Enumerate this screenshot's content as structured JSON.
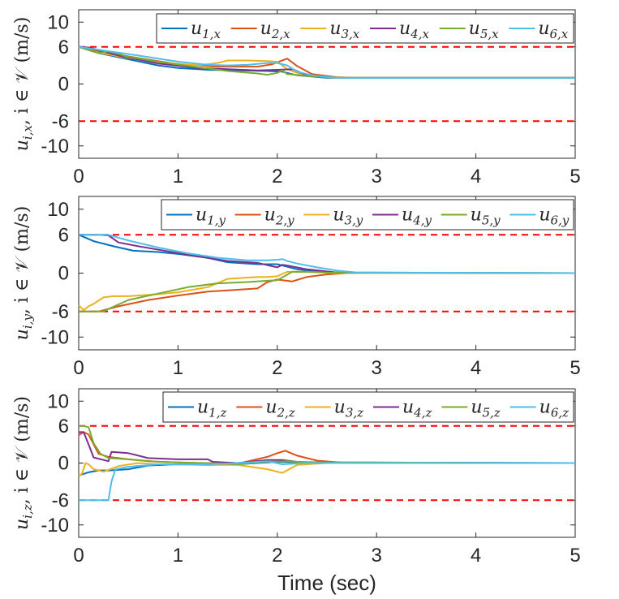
{
  "chart_data": [
    {
      "type": "line",
      "ylabel": "u_{i,x}, i ∈ 𝒱 (m/s)",
      "ylabel_parts": {
        "var": "u",
        "sub": "i,x",
        "rest": ", i ∈ 𝒱 (m/s)"
      },
      "xlim": [
        0,
        5
      ],
      "ylim": [
        -12,
        12
      ],
      "xticks": [
        "0",
        "1",
        "2",
        "3",
        "4",
        "5"
      ],
      "yticks": [
        {
          "v": 10,
          "label": "10"
        },
        {
          "v": 6,
          "label": "6"
        },
        {
          "v": 0,
          "label": "0"
        },
        {
          "v": -6,
          "label": "-6"
        },
        {
          "v": -10,
          "label": "-10"
        }
      ],
      "bounds": [
        6,
        -6
      ],
      "legend_position": "top-right",
      "series": [
        {
          "name": "u1x",
          "label": "u",
          "sub": "1,x",
          "color": "#0072BD",
          "x": [
            0,
            0.2,
            0.5,
            0.8,
            1.0,
            1.3,
            1.6,
            1.9,
            2.05,
            2.2,
            2.5,
            2.8,
            5
          ],
          "y": [
            6,
            5.0,
            4.0,
            3.0,
            2.6,
            2.3,
            2.2,
            2.1,
            2.0,
            1.4,
            1.0,
            1.0,
            1.0
          ]
        },
        {
          "name": "u2x",
          "label": "u",
          "sub": "2,x",
          "color": "#D95319",
          "x": [
            0,
            0.3,
            0.6,
            1.0,
            1.4,
            1.8,
            1.95,
            2.1,
            2.2,
            2.35,
            2.6,
            2.8,
            5
          ],
          "y": [
            6,
            5.0,
            4.2,
            3.2,
            2.8,
            2.8,
            3.2,
            4.1,
            2.9,
            1.6,
            1.1,
            1.0,
            1.0
          ]
        },
        {
          "name": "u3x",
          "label": "u",
          "sub": "3,x",
          "color": "#EDB120",
          "x": [
            0,
            0.15,
            0.5,
            0.9,
            1.2,
            1.4,
            1.5,
            1.7,
            1.9,
            2.0,
            2.1,
            2.25,
            2.5,
            2.8,
            5
          ],
          "y": [
            6,
            5.2,
            4.2,
            3.4,
            3.0,
            3.4,
            3.8,
            3.8,
            3.7,
            3.6,
            2.4,
            1.5,
            1.1,
            1.0,
            1.0
          ]
        },
        {
          "name": "u4x",
          "label": "u",
          "sub": "4,x",
          "color": "#7E2F8E",
          "x": [
            0,
            0.1,
            0.4,
            0.8,
            1.2,
            1.5,
            1.8,
            2.0,
            2.15,
            2.3,
            2.6,
            2.8,
            5
          ],
          "y": [
            6,
            5.9,
            4.6,
            3.3,
            2.6,
            2.4,
            2.2,
            2.3,
            2.4,
            1.4,
            1.0,
            1.0,
            1.0
          ]
        },
        {
          "name": "u5x",
          "label": "u",
          "sub": "5,x",
          "color": "#77AC30",
          "x": [
            0,
            0.1,
            0.2,
            0.3,
            0.5,
            0.8,
            1.2,
            1.5,
            1.8,
            1.9,
            2.0,
            2.05,
            2.1,
            2.3,
            2.6,
            2.8,
            5
          ],
          "y": [
            6,
            5.5,
            5.0,
            5.3,
            4.4,
            3.6,
            2.7,
            2.1,
            1.7,
            1.5,
            1.8,
            2.2,
            1.6,
            1.3,
            1.0,
            1.0,
            1.0
          ]
        },
        {
          "name": "u6x",
          "label": "u",
          "sub": "6,x",
          "color": "#4DBEEE",
          "x": [
            0,
            0.3,
            0.6,
            1.0,
            1.3,
            1.5,
            1.7,
            1.9,
            2.0,
            2.1,
            2.2,
            2.35,
            2.6,
            2.8,
            5
          ],
          "y": [
            6,
            5.3,
            4.6,
            3.6,
            3.1,
            3.0,
            3.1,
            3.4,
            3.4,
            3.0,
            2.0,
            1.4,
            1.0,
            1.0,
            1.0
          ]
        }
      ],
      "legend": [
        "u1x",
        "u2x",
        "u3x",
        "u4x",
        "u5x",
        "u6x"
      ]
    },
    {
      "type": "line",
      "ylabel": "u_{i,y}, i ∈ 𝒱 (m/s)",
      "ylabel_parts": {
        "var": "u",
        "sub": "i,y",
        "rest": ", i ∈ 𝒱 (m/s)"
      },
      "xlim": [
        0,
        5
      ],
      "ylim": [
        -12,
        12
      ],
      "xticks": [
        "0",
        "1",
        "2",
        "3",
        "4",
        "5"
      ],
      "yticks": [
        {
          "v": 10,
          "label": "10"
        },
        {
          "v": 6,
          "label": "6"
        },
        {
          "v": 0,
          "label": "0"
        },
        {
          "v": -6,
          "label": "-6"
        },
        {
          "v": -10,
          "label": "-10"
        }
      ],
      "bounds": [
        6,
        -6
      ],
      "legend_position": "top-right",
      "series": [
        {
          "name": "u1y",
          "label": "u",
          "sub": "1,y",
          "color": "#0072BD",
          "x": [
            0,
            0.15,
            0.35,
            0.55,
            0.8,
            1.0,
            1.3,
            1.5,
            1.8,
            2.0,
            2.2,
            2.4,
            2.6,
            2.8,
            5
          ],
          "y": [
            6,
            5.0,
            4.2,
            3.5,
            3.3,
            3.0,
            2.4,
            1.7,
            1.4,
            1.4,
            0.6,
            0.2,
            0.1,
            0,
            0
          ]
        },
        {
          "name": "u2y",
          "label": "u",
          "sub": "2,y",
          "color": "#D95319",
          "x": [
            0,
            0.2,
            0.4,
            0.7,
            1.0,
            1.3,
            1.6,
            1.8,
            1.9,
            2.0,
            2.15,
            2.3,
            2.5,
            2.7,
            5
          ],
          "y": [
            -6,
            -6,
            -5.2,
            -4.2,
            -3.5,
            -2.9,
            -2.6,
            -2.4,
            -1.4,
            -1.0,
            -1.3,
            -0.6,
            -0.2,
            0,
            0
          ]
        },
        {
          "name": "u3y",
          "label": "u",
          "sub": "3,y",
          "color": "#EDB120",
          "x": [
            0,
            0.05,
            0.1,
            0.15,
            0.25,
            0.35,
            0.5,
            0.8,
            1.0,
            1.3,
            1.5,
            1.8,
            1.9,
            2.0,
            2.1,
            2.3,
            2.6,
            5
          ],
          "y": [
            -5,
            -5.8,
            -5.2,
            -4.8,
            -3.8,
            -3.6,
            -3.6,
            -3.3,
            -3.0,
            -2.2,
            -0.9,
            -0.6,
            -0.6,
            -0.5,
            0.2,
            0.2,
            0,
            0
          ]
        },
        {
          "name": "u4y",
          "label": "u",
          "sub": "4,y",
          "color": "#7E2F8E",
          "x": [
            0,
            0.2,
            0.3,
            0.4,
            0.6,
            0.9,
            1.2,
            1.5,
            1.8,
            2.0,
            2.05,
            2.1,
            2.3,
            2.6,
            5
          ],
          "y": [
            6,
            6,
            5.9,
            4.8,
            4.2,
            3.4,
            2.6,
            1.9,
            1.6,
            0.9,
            1.3,
            1.2,
            0.6,
            0.1,
            0
          ]
        },
        {
          "name": "u5y",
          "label": "u",
          "sub": "5,y",
          "color": "#77AC30",
          "x": [
            0,
            0.25,
            0.3,
            0.5,
            0.8,
            1.1,
            1.4,
            1.7,
            1.9,
            2.0,
            2.15,
            2.3,
            2.5,
            5
          ],
          "y": [
            -6,
            -6,
            -5.6,
            -4.2,
            -3.2,
            -2.2,
            -1.6,
            -1.4,
            -1.2,
            -1.1,
            0.2,
            0.2,
            0.1,
            0
          ]
        },
        {
          "name": "u6y",
          "label": "u",
          "sub": "6,y",
          "color": "#4DBEEE",
          "x": [
            0,
            0.3,
            0.5,
            0.8,
            1.1,
            1.4,
            1.7,
            1.9,
            2.0,
            2.05,
            2.1,
            2.2,
            2.4,
            2.6,
            2.8,
            5
          ],
          "y": [
            6,
            6,
            5.1,
            4.0,
            3.1,
            2.4,
            2.0,
            2.0,
            2.1,
            2.2,
            1.9,
            1.5,
            0.9,
            0.4,
            0.1,
            0
          ]
        }
      ],
      "legend": [
        "u1y",
        "u2y",
        "u3y",
        "u4y",
        "u5y",
        "u6y"
      ]
    },
    {
      "type": "line",
      "ylabel": "u_{i,z}, i ∈ 𝒱 (m/s)",
      "ylabel_parts": {
        "var": "u",
        "sub": "i,z",
        "rest": ", i ∈ 𝒱 (m/s)"
      },
      "xlim": [
        0,
        5
      ],
      "ylim": [
        -12,
        12
      ],
      "xticks": [
        "0",
        "1",
        "2",
        "3",
        "4",
        "5"
      ],
      "xlabel": "Time (sec)",
      "yticks": [
        {
          "v": 10,
          "label": "10"
        },
        {
          "v": 6,
          "label": "6"
        },
        {
          "v": 0,
          "label": "0"
        },
        {
          "v": -6,
          "label": "-6"
        },
        {
          "v": -10,
          "label": "-10"
        }
      ],
      "bounds": [
        6,
        -6
      ],
      "legend_position": "top-right",
      "series": [
        {
          "name": "u1z",
          "label": "u",
          "sub": "1,z",
          "color": "#0072BD",
          "x": [
            0,
            0.1,
            0.2,
            0.3,
            0.5,
            0.7,
            1.0,
            1.3,
            1.6,
            2.0,
            2.3,
            5
          ],
          "y": [
            -2,
            -1.5,
            -1.2,
            -1.2,
            -1.0,
            -0.4,
            -0.2,
            -0.3,
            -0.2,
            0.2,
            0.1,
            0
          ]
        },
        {
          "name": "u2z",
          "label": "u",
          "sub": "2,z",
          "color": "#D95319",
          "x": [
            0,
            0.05,
            0.1,
            0.2,
            0.3,
            0.5,
            0.8,
            1.2,
            1.6,
            1.9,
            2.0,
            2.08,
            2.2,
            2.4,
            2.7,
            5
          ],
          "y": [
            4.5,
            5.0,
            4.6,
            1.5,
            1.0,
            0.6,
            0.2,
            0,
            -0.1,
            1.0,
            1.6,
            2.0,
            1.2,
            0.4,
            0,
            0
          ]
        },
        {
          "name": "u3z",
          "label": "u",
          "sub": "3,z",
          "color": "#EDB120",
          "x": [
            0,
            0.03,
            0.07,
            0.1,
            0.15,
            0.25,
            0.4,
            0.6,
            0.8,
            1.2,
            1.6,
            1.9,
            2.05,
            2.2,
            2.5,
            5
          ],
          "y": [
            -2.0,
            -1.8,
            0,
            -0.2,
            -1.0,
            -1.4,
            -0.5,
            0,
            -0.2,
            -0.3,
            -0.3,
            -1.0,
            -1.6,
            -0.3,
            0,
            0
          ]
        },
        {
          "name": "u4z",
          "label": "u",
          "sub": "4,z",
          "color": "#7E2F8E",
          "x": [
            0,
            0.05,
            0.1,
            0.15,
            0.25,
            0.3,
            0.33,
            0.5,
            0.7,
            1.0,
            1.3,
            1.35,
            1.6,
            1.9,
            2.05,
            2.2,
            2.4,
            5
          ],
          "y": [
            5.0,
            5.0,
            3.0,
            0.9,
            0.5,
            0.3,
            1.8,
            1.6,
            0.8,
            0.6,
            0.6,
            0.2,
            0.0,
            0.5,
            0.5,
            0.2,
            0.1,
            0
          ]
        },
        {
          "name": "u5z",
          "label": "u",
          "sub": "5,z",
          "color": "#77AC30",
          "x": [
            0,
            0.05,
            0.1,
            0.15,
            0.22,
            0.3,
            0.5,
            0.7,
            1.0,
            1.3,
            1.6,
            1.9,
            2.1,
            2.3,
            5
          ],
          "y": [
            6,
            6,
            5.8,
            3.2,
            1.5,
            0.8,
            0.6,
            0.3,
            0.1,
            0,
            -0.2,
            0.2,
            0.3,
            0.1,
            0
          ]
        },
        {
          "name": "u6z",
          "label": "u",
          "sub": "6,z",
          "color": "#4DBEEE",
          "x": [
            0,
            0.3,
            0.33,
            0.37,
            0.5,
            0.8,
            1.0,
            1.3,
            1.6,
            1.9,
            2.05,
            2.3,
            5
          ],
          "y": [
            -6,
            -6,
            -3.0,
            -1.0,
            -0.6,
            -0.2,
            -0.2,
            -0.2,
            0,
            0.3,
            -0.2,
            0,
            0
          ]
        }
      ],
      "legend": [
        "u1z",
        "u2z",
        "u3z",
        "u4z",
        "u5z",
        "u6z"
      ]
    }
  ]
}
